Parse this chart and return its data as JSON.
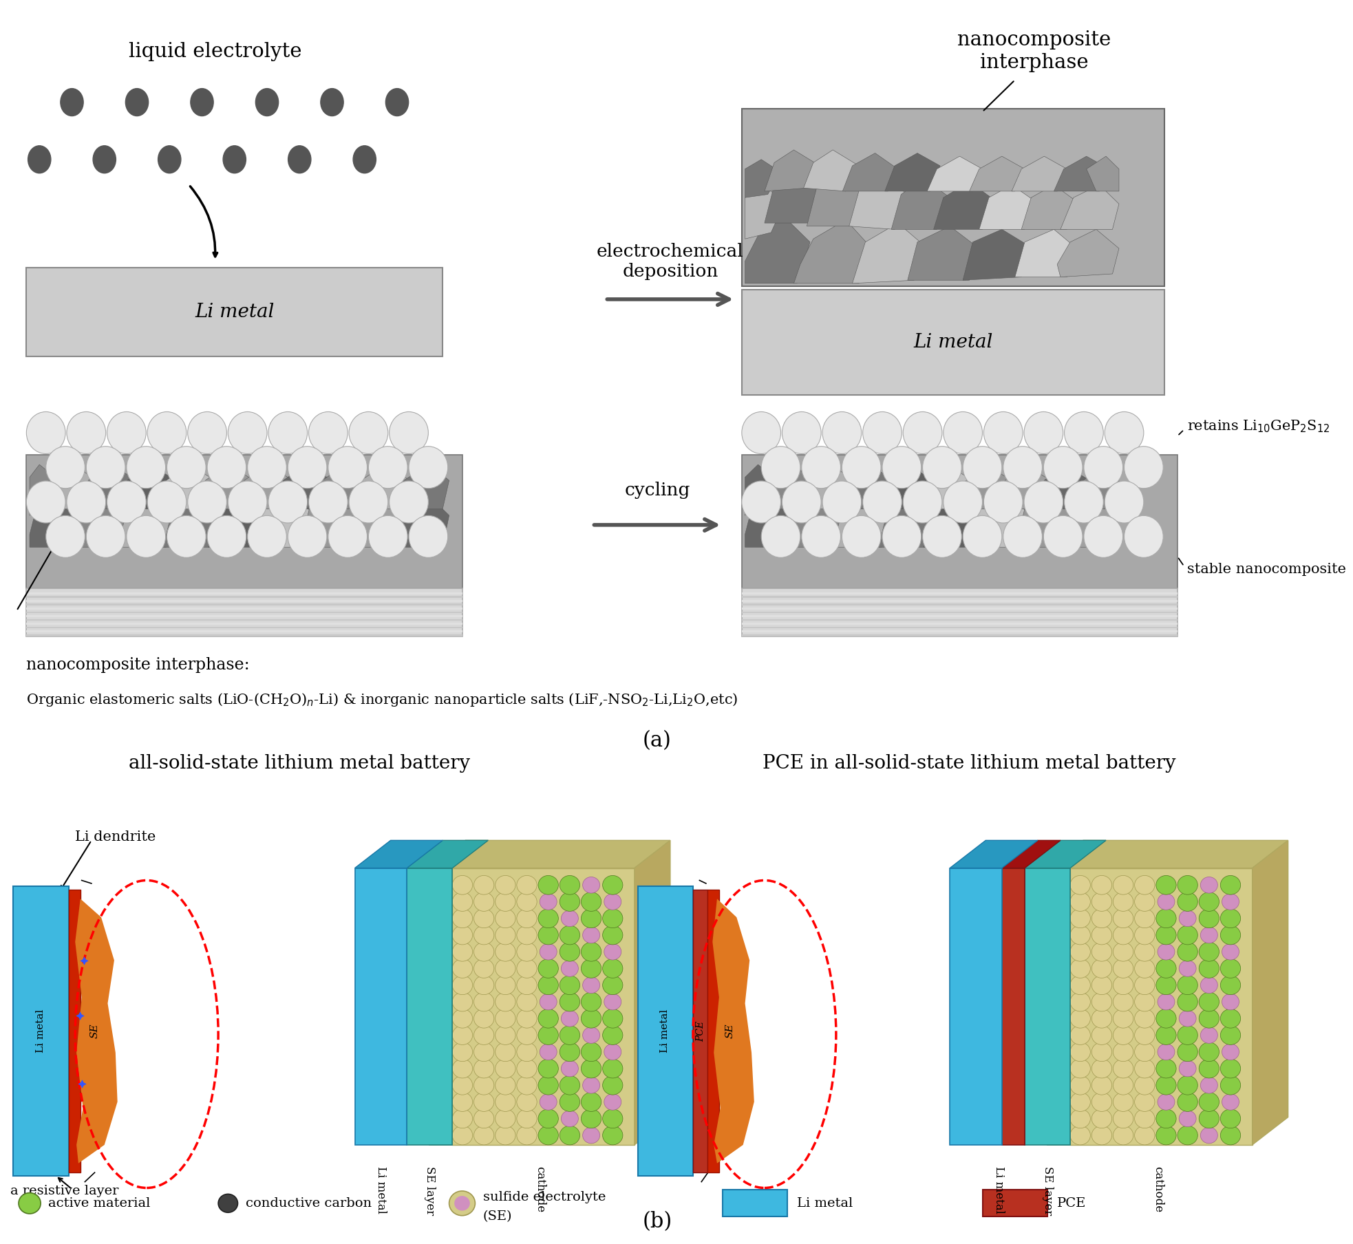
{
  "title_a": "(a)",
  "title_b": "(b)",
  "bg_color": "#ffffff",
  "panel_a": {
    "liquid_electrolyte_label": "liquid electrolyte",
    "nanocomposite_label": "nanocomposite\ninterphase",
    "electrochemical_label": "electrochemical\ndeposition",
    "cycling_label": "cycling",
    "li_metal_label": "Li metal",
    "retains_label": "retains Li$_{10}$GeP$_2$S$_{12}$",
    "stable_label": "stable nanocomposite",
    "nanocomposite_desc1": "nanocomposite interphase:",
    "nanocomposite_desc2": "Organic elastomeric salts (LiO-(CH$_2$O)$_n$-Li) & inorganic nanoparticle salts (LiF,-NSO$_2$-Li,Li$_2$O,etc)"
  },
  "panel_b": {
    "left_title": "all-solid-state lithium metal battery",
    "right_title": "PCE in all-solid-state lithium metal battery",
    "li_dendrite_label": "Li dendrite",
    "resistive_label": "a resistive layer",
    "li_metal_color": "#3eb8e0",
    "se_orange_color": "#e07020",
    "se_red_color": "#cc2200",
    "pce_color": "#b83020",
    "se_layer_color": "#40c0c0",
    "green_plate_color": "#a0c880"
  },
  "legend": {
    "active_material_color": "#88cc44",
    "conductive_carbon_color": "#404040",
    "sulfide_outer_color": "#d8cc88",
    "sulfide_inner_color": "#d090c0",
    "li_metal_color": "#3eb8e0",
    "pce_color": "#b83020"
  }
}
